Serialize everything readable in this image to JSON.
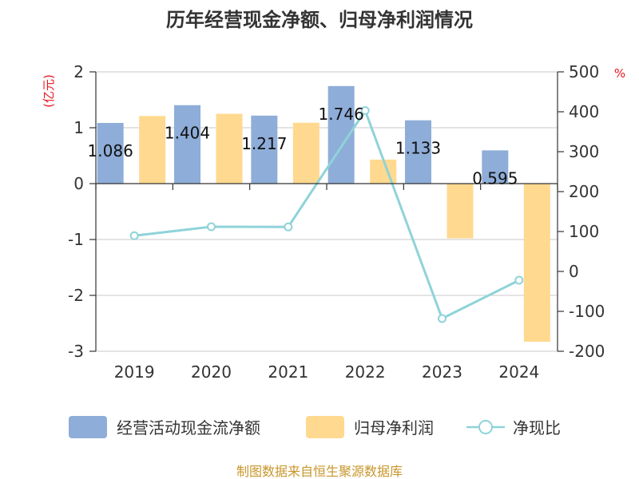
{
  "chart_data": {
    "type": "bar",
    "title": "历年经营现金净额、归母净利润情况",
    "categories": [
      "2019",
      "2020",
      "2021",
      "2022",
      "2023",
      "2024"
    ],
    "series": [
      {
        "name": "经营活动现金流净额",
        "axis": "left",
        "color": "#8eadd9",
        "values": [
          1.086,
          1.404,
          1.217,
          1.746,
          1.133,
          0.595
        ],
        "labels": [
          "1.086",
          "1.404",
          "1.217",
          "1.746",
          "1.133",
          "0.595"
        ]
      },
      {
        "name": "归母净利润",
        "axis": "left",
        "color": "#ffd98f",
        "values": [
          1.21,
          1.25,
          1.09,
          0.43,
          -0.98,
          -2.83
        ]
      },
      {
        "name": "净现比",
        "axis": "right",
        "type": "line",
        "color": "#8fd3d9",
        "values": [
          89.5,
          112,
          111.5,
          403,
          -118,
          -22
        ]
      }
    ],
    "y_left": {
      "unit": "(亿元)",
      "min": -3,
      "max": 2,
      "ticks": [
        2,
        1,
        0,
        -1,
        -2,
        -3
      ],
      "tick_labels": [
        "2",
        "1",
        "0",
        "-1",
        "-2",
        "-3"
      ]
    },
    "y_right": {
      "unit": "%",
      "min": -200,
      "max": 500,
      "ticks": [
        500,
        400,
        300,
        200,
        100,
        0,
        -100,
        -200
      ],
      "tick_labels": [
        "500",
        "400",
        "300",
        "200",
        "100",
        "0",
        "-100",
        "-200"
      ]
    },
    "grid": true,
    "legend_position": "bottom",
    "source_note": "制图数据来自恒生聚源数据库"
  }
}
